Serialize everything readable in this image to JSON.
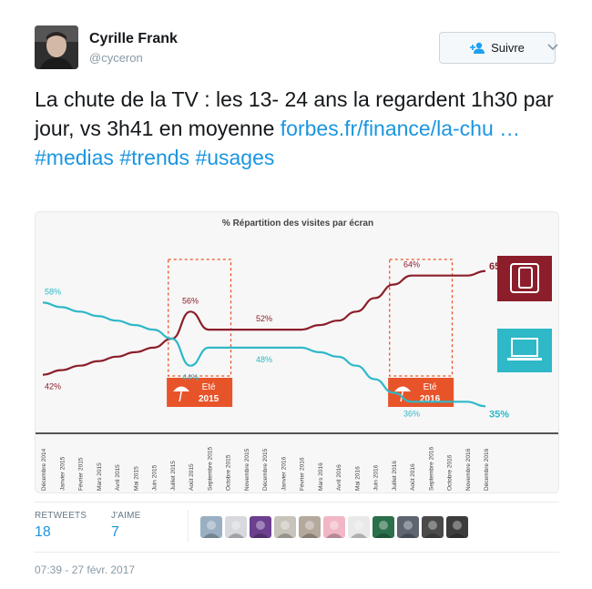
{
  "user": {
    "name": "Cyrille Frank",
    "handle": "@cyceron"
  },
  "follow_button": {
    "label": "Suivre"
  },
  "tweet": {
    "text": "La chute de la TV : les 13- 24 ans la regardent 1h30 par jour, vs 3h41 en moyenne ",
    "link": "forbes.fr/finance/la-chu …",
    "hashtags": [
      "#medias",
      "#trends",
      "#usages"
    ]
  },
  "chart_data": {
    "type": "line",
    "title": "% Répartition des visites par écran",
    "categories": [
      "Décembre 2014",
      "Janvier 2015",
      "Février 2015",
      "Mars 2015",
      "Avril 2015",
      "Mai 2015",
      "Juin 2015",
      "Juillet 2015",
      "Août 2015",
      "Septembre 2015",
      "Octobre 2015",
      "Novembre 2015",
      "Décembre 2015",
      "Janvier 2016",
      "Février 2016",
      "Mars 2016",
      "Avril 2016",
      "Mai 2016",
      "Juin 2016",
      "Juillet 2016",
      "Août 2016",
      "Septembre 2016",
      "Octobre 2016",
      "Novembre 2016",
      "Décembre 2016"
    ],
    "series": [
      {
        "color": "#8b1e2a",
        "values": [
          42,
          43,
          44,
          45,
          46,
          47,
          48,
          50,
          56,
          52,
          52,
          52,
          52,
          52,
          52,
          53,
          54,
          56,
          59,
          62,
          64,
          64,
          64,
          64,
          65
        ]
      },
      {
        "color": "#2eb8c8",
        "values": [
          58,
          57,
          56,
          55,
          54,
          53,
          52,
          50,
          44,
          48,
          48,
          48,
          48,
          48,
          48,
          47,
          46,
          44,
          41,
          38,
          36,
          36,
          36,
          36,
          35
        ]
      }
    ],
    "point_labels": [
      {
        "series": 0,
        "index": 0,
        "text": "42%"
      },
      {
        "series": 1,
        "index": 0,
        "text": "58%"
      },
      {
        "series": 0,
        "index": 8,
        "text": "56%"
      },
      {
        "series": 1,
        "index": 8,
        "text": "44%"
      },
      {
        "series": 0,
        "index": 12,
        "text": "52%"
      },
      {
        "series": 1,
        "index": 12,
        "text": "48%"
      },
      {
        "series": 0,
        "index": 20,
        "text": "64%"
      },
      {
        "series": 1,
        "index": 20,
        "text": "36%"
      },
      {
        "series": 0,
        "index": 24,
        "text": "65%"
      },
      {
        "series": 1,
        "index": 24,
        "text": "35%"
      }
    ],
    "highlights": [
      {
        "start": 7,
        "end": 10,
        "label_line1": "Eté",
        "label_line2": "2015"
      },
      {
        "start": 19,
        "end": 22,
        "label_line1": "Eté",
        "label_line2": "2016"
      }
    ],
    "highlight_color": "#e8542a",
    "ylim": [
      30,
      70
    ]
  },
  "stats": {
    "retweets_label": "RETWEETS",
    "retweets_value": "18",
    "likes_label": "J'AIME",
    "likes_value": "7"
  },
  "likers": [
    {
      "color": "#9ab0c2"
    },
    {
      "color": "#d7d9dd"
    },
    {
      "color": "#6c3f8f"
    },
    {
      "color": "#c8c3bb"
    },
    {
      "color": "#b5a99d"
    },
    {
      "color": "#f1b7c6"
    },
    {
      "color": "#e9e9e9"
    },
    {
      "color": "#2b6f4b"
    },
    {
      "color": "#5d6570"
    },
    {
      "color": "#4a4a4a"
    },
    {
      "color": "#3c3c3c"
    }
  ],
  "timestamp": "07:39 - 27 févr. 2017"
}
